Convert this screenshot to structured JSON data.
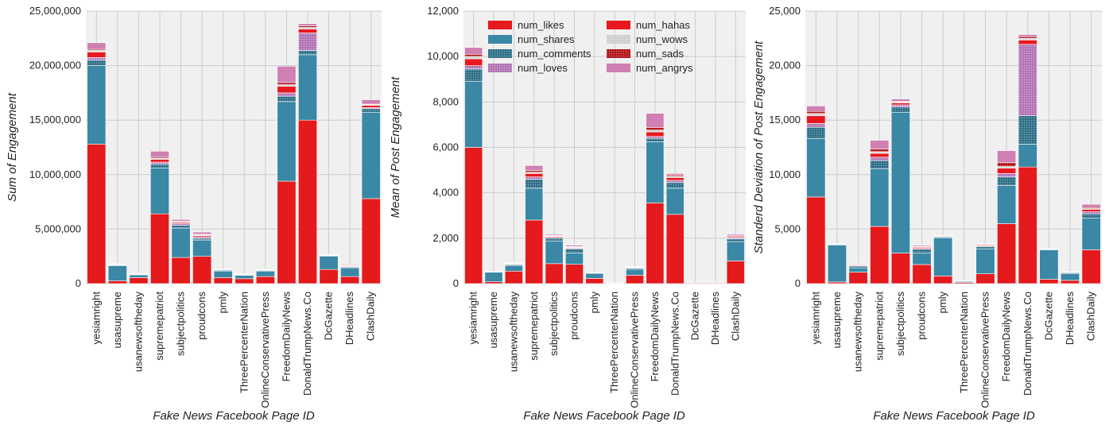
{
  "figure": {
    "xlabel": "Fake News Facebook Page ID"
  },
  "chart_data": [
    {
      "type": "bar",
      "stacked": true,
      "ylabel": "Sum of Engagement",
      "ylim": [
        0,
        25000000
      ],
      "yticks": [
        0,
        5000000,
        10000000,
        15000000,
        20000000,
        25000000
      ],
      "ytick_labels": [
        "0",
        "5,000,000",
        "10,000,000",
        "15,000,000",
        "20,000,000",
        "25,000,000"
      ],
      "categories": [
        "yesiamright",
        "usasupreme",
        "usanewsoftheday",
        "supremepatriot",
        "subjectpolitics",
        "proudcons",
        "pmly",
        "ThreePercenterNation",
        "OnlineConservativePress",
        "FreedomDailyNews",
        "DonaldTrumpNews.Co",
        "DcGazette",
        "DHeadlines",
        "ClashDaily"
      ],
      "xlabel": "Fake News Facebook Page ID",
      "grid": true,
      "series": [
        {
          "name": "num_likes",
          "values": [
            12800000,
            250000,
            550000,
            6400000,
            2400000,
            2500000,
            550000,
            450000,
            650000,
            9400000,
            15000000,
            1300000,
            650000,
            7800000
          ]
        },
        {
          "name": "num_shares",
          "values": [
            7200000,
            1400000,
            250000,
            4200000,
            2700000,
            1500000,
            600000,
            300000,
            500000,
            7300000,
            6000000,
            1200000,
            800000,
            7900000
          ]
        },
        {
          "name": "num_comments",
          "values": [
            500000,
            60000,
            50000,
            350000,
            250000,
            150000,
            80000,
            60000,
            60000,
            500000,
            400000,
            70000,
            80000,
            350000
          ]
        },
        {
          "name": "num_loves",
          "values": [
            250000,
            40000,
            30000,
            200000,
            150000,
            150000,
            40000,
            30000,
            30000,
            300000,
            1600000,
            30000,
            50000,
            100000
          ]
        },
        {
          "name": "num_hahas",
          "values": [
            500000,
            20000,
            20000,
            250000,
            100000,
            100000,
            20000,
            20000,
            20000,
            600000,
            350000,
            20000,
            60000,
            200000
          ]
        },
        {
          "name": "num_wows",
          "values": [
            150000,
            10000,
            10000,
            100000,
            80000,
            80000,
            10000,
            10000,
            10000,
            150000,
            150000,
            10000,
            20000,
            60000
          ]
        },
        {
          "name": "num_sads",
          "values": [
            100000,
            10000,
            10000,
            100000,
            50000,
            50000,
            10000,
            10000,
            10000,
            200000,
            150000,
            10000,
            20000,
            60000
          ]
        },
        {
          "name": "num_angrys",
          "values": [
            600000,
            20000,
            20000,
            550000,
            150000,
            200000,
            20000,
            20000,
            20000,
            1500000,
            200000,
            20000,
            70000,
            400000
          ]
        }
      ]
    },
    {
      "type": "bar",
      "stacked": true,
      "ylabel": "Mean of Post Engagement",
      "ylim": [
        0,
        12000
      ],
      "yticks": [
        0,
        2000,
        4000,
        6000,
        8000,
        10000,
        12000
      ],
      "ytick_labels": [
        "0",
        "2,000",
        "4,000",
        "6,000",
        "8,000",
        "10,000",
        "12,000"
      ],
      "categories": [
        "yesiamright",
        "usasupreme",
        "usanewsoftheday",
        "supremepatriot",
        "subjectpolitics",
        "proudcons",
        "pmly",
        "ThreePercenterNation",
        "OnlineConservativePress",
        "FreedomDailyNews",
        "DonaldTrumpNews.Co",
        "DcGazette",
        "DHeadlines",
        "ClashDaily"
      ],
      "xlabel": "Fake News Facebook Page ID",
      "grid": true,
      "legend": {
        "location": "top-center",
        "columns": 2
      },
      "series": [
        {
          "name": "num_likes",
          "values": [
            6000,
            80,
            550,
            2800,
            880,
            850,
            230,
            15,
            370,
            3550,
            3050,
            30,
            30,
            1000
          ]
        },
        {
          "name": "num_shares",
          "values": [
            2900,
            420,
            250,
            1400,
            1000,
            500,
            220,
            10,
            260,
            2700,
            1150,
            25,
            25,
            850
          ]
        },
        {
          "name": "num_comments",
          "values": [
            550,
            20,
            40,
            400,
            120,
            180,
            20,
            5,
            50,
            150,
            250,
            10,
            10,
            130
          ]
        },
        {
          "name": "num_loves",
          "values": [
            150,
            5,
            20,
            100,
            40,
            30,
            10,
            2,
            20,
            80,
            100,
            2,
            2,
            40
          ]
        },
        {
          "name": "num_hahas",
          "values": [
            300,
            5,
            20,
            150,
            40,
            30,
            10,
            2,
            20,
            200,
            120,
            2,
            2,
            40
          ]
        },
        {
          "name": "num_wows",
          "values": [
            100,
            5,
            10,
            60,
            20,
            20,
            5,
            1,
            10,
            80,
            60,
            1,
            1,
            20
          ]
        },
        {
          "name": "num_sads",
          "values": [
            100,
            5,
            10,
            70,
            20,
            20,
            5,
            1,
            10,
            120,
            60,
            1,
            1,
            30
          ]
        },
        {
          "name": "num_angrys",
          "values": [
            300,
            5,
            20,
            220,
            50,
            60,
            5,
            2,
            10,
            620,
            60,
            2,
            2,
            60
          ]
        }
      ]
    },
    {
      "type": "bar",
      "stacked": true,
      "ylabel": "Standerd Deviation of Post Engagement",
      "ylim": [
        0,
        25000
      ],
      "yticks": [
        0,
        5000,
        10000,
        15000,
        20000,
        25000
      ],
      "ytick_labels": [
        "0",
        "5,000",
        "10,000",
        "15,000",
        "20,000",
        "25,000"
      ],
      "categories": [
        "yesiamright",
        "usasupreme",
        "usanewsoftheday",
        "supremepatriot",
        "subjectpolitics",
        "proudcons",
        "pmly",
        "ThreePercenterNation",
        "OnlineConservativePress",
        "FreedomDailyNews",
        "DonaldTrumpNews.Co",
        "DcGazette",
        "DHeadlines",
        "ClashDaily"
      ],
      "xlabel": "Fake News Facebook Page ID",
      "grid": true,
      "series": [
        {
          "name": "num_likes",
          "values": [
            7950,
            150,
            1050,
            5250,
            2800,
            1750,
            700,
            100,
            900,
            5500,
            10700,
            400,
            300,
            3100
          ]
        },
        {
          "name": "num_shares",
          "values": [
            5350,
            3400,
            400,
            5300,
            12900,
            1050,
            3500,
            100,
            2300,
            3500,
            2100,
            2700,
            600,
            2900
          ]
        },
        {
          "name": "num_comments",
          "values": [
            1050,
            50,
            150,
            750,
            500,
            350,
            100,
            30,
            200,
            800,
            2600,
            50,
            100,
            400
          ]
        },
        {
          "name": "num_loves",
          "values": [
            350,
            20,
            80,
            300,
            200,
            80,
            30,
            10,
            60,
            300,
            6550,
            10,
            20,
            200
          ]
        },
        {
          "name": "num_hahas",
          "values": [
            700,
            10,
            50,
            350,
            180,
            100,
            40,
            10,
            80,
            500,
            400,
            10,
            30,
            200
          ]
        },
        {
          "name": "num_wows",
          "values": [
            200,
            10,
            20,
            150,
            100,
            40,
            10,
            5,
            30,
            150,
            150,
            5,
            10,
            80
          ]
        },
        {
          "name": "num_sads",
          "values": [
            200,
            10,
            20,
            250,
            60,
            40,
            10,
            5,
            30,
            350,
            150,
            5,
            10,
            100
          ]
        },
        {
          "name": "num_angrys",
          "values": [
            500,
            10,
            60,
            800,
            200,
            100,
            20,
            10,
            60,
            1100,
            200,
            20,
            30,
            300
          ]
        }
      ]
    }
  ],
  "colors": {
    "num_likes": "#e41a1c",
    "num_shares": "#3a87a6",
    "num_comments": "#2e6f88",
    "num_loves": "#b274b5",
    "num_hahas": "#e8191e",
    "num_wows": "#cfcfcf",
    "num_sads": "#b1141a",
    "num_angrys": "#cf7fb2",
    "background": "#f0f0f0",
    "grid": "#cccccc"
  }
}
